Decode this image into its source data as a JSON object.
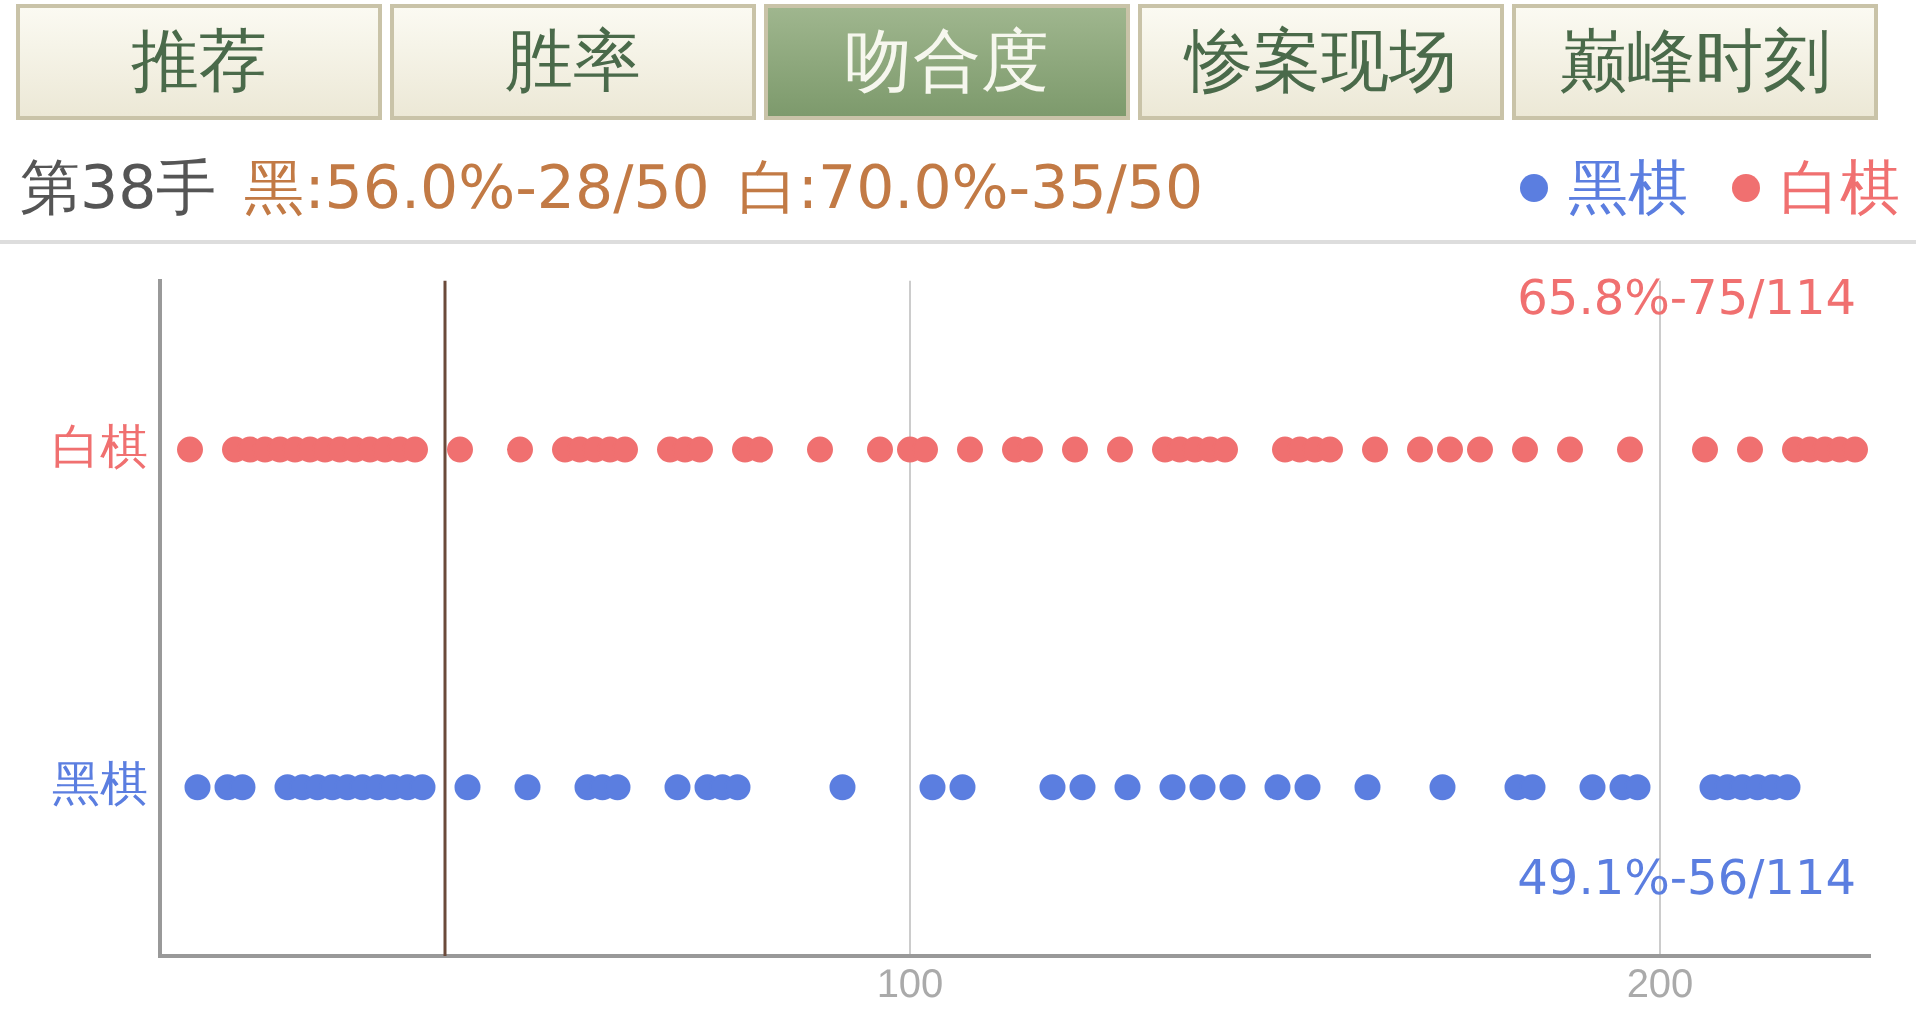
{
  "chart_data": {
    "type": "scatter",
    "orientation": "horizontal",
    "annotations": [
      "推荐",
      "胜率",
      "吻合度",
      "惨案现场",
      "巅峰时刻",
      "第38手",
      "黑:56.0%-28/50",
      "白:70.0%-35/50",
      "65.8%-75/114",
      "49.1%-56/114"
    ],
    "categories": [
      "白棋",
      "黑棋"
    ],
    "xlim": [
      0,
      228
    ],
    "xticks": [
      100,
      200
    ],
    "grid": "x",
    "legend": "top right",
    "marker": "circle",
    "ref_lines": [
      {
        "axis": "x",
        "value": 38,
        "color": "#6b4a3a"
      }
    ],
    "series": [
      {
        "name": "黑棋",
        "color": "#5b7ee0",
        "values": [
          5,
          9,
          11,
          17,
          19,
          21,
          23,
          25,
          27,
          29,
          31,
          33,
          35,
          41,
          49,
          57,
          59,
          61,
          69,
          73,
          75,
          77,
          91,
          103,
          107,
          119,
          123,
          129,
          135,
          139,
          143,
          149,
          153,
          161,
          171,
          181,
          183,
          191,
          195,
          197,
          207,
          209,
          211,
          213,
          215,
          217
        ],
        "x": [
          "黑棋",
          "黑棋",
          "黑棋",
          "黑棋",
          "黑棋",
          "黑棋",
          "黑棋",
          "黑棋",
          "黑棋",
          "黑棋",
          "黑棋",
          "黑棋",
          "黑棋",
          "黑棋",
          "黑棋",
          "黑棋",
          "黑棋",
          "黑棋",
          "黑棋",
          "黑棋",
          "黑棋",
          "黑棋",
          "黑棋",
          "黑棋",
          "黑棋",
          "黑棋",
          "黑棋",
          "黑棋",
          "黑棋",
          "黑棋",
          "黑棋",
          "黑棋",
          "黑棋",
          "黑棋",
          "黑棋",
          "黑棋",
          "黑棋",
          "黑棋",
          "黑棋",
          "黑棋",
          "黑棋",
          "黑棋",
          "黑棋",
          "黑棋",
          "黑棋",
          "黑棋"
        ]
      },
      {
        "name": "白棋",
        "color": "#f07070",
        "values": [
          4,
          10,
          12,
          14,
          16,
          18,
          20,
          22,
          24,
          26,
          28,
          30,
          32,
          34,
          40,
          48,
          54,
          56,
          58,
          60,
          62,
          68,
          70,
          72,
          78,
          80,
          88,
          96,
          100,
          102,
          108,
          114,
          116,
          122,
          128,
          134,
          136,
          138,
          140,
          142,
          150,
          152,
          154,
          156,
          162,
          168,
          172,
          176,
          182,
          188,
          196,
          206,
          212,
          218,
          220,
          222,
          224,
          226
        ],
        "x": [
          "白棋",
          "白棋",
          "白棋",
          "白棋",
          "白棋",
          "白棋",
          "白棋",
          "白棋",
          "白棋",
          "白棋",
          "白棋",
          "白棋",
          "白棋",
          "白棋",
          "白棋",
          "白棋",
          "白棋",
          "白棋",
          "白棋",
          "白棋",
          "白棋",
          "白棋",
          "白棋",
          "白棋",
          "白棋",
          "白棋",
          "白棋",
          "白棋",
          "白棋",
          "白棋",
          "白棋",
          "白棋",
          "白棋",
          "白棋",
          "白棋",
          "白棋",
          "白棋",
          "白棋",
          "白棋",
          "白棋",
          "白棋",
          "白棋",
          "白棋",
          "白棋",
          "白棋",
          "白棋",
          "白棋",
          "白棋",
          "白棋",
          "白棋",
          "白棋",
          "白棋",
          "白棋",
          "白棋",
          "白棋",
          "白棋",
          "白棋",
          "白棋"
        ]
      }
    ]
  }
}
